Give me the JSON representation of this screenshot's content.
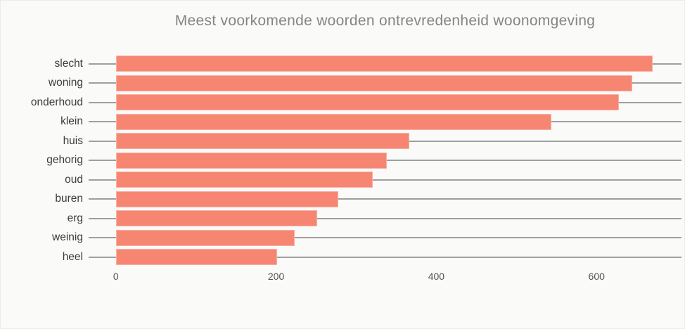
{
  "title": "Meest voorkomende woorden ontrevredenheid woonomgeving",
  "chart_data": {
    "type": "bar",
    "orientation": "horizontal",
    "title": "Meest voorkomende woorden ontrevredenheid woonomgeving",
    "categories": [
      "slecht",
      "woning",
      "onderhoud",
      "klein",
      "huis",
      "gehorig",
      "oud",
      "buren",
      "erg",
      "weinig",
      "heel"
    ],
    "values": [
      670,
      645,
      628,
      544,
      366,
      338,
      321,
      278,
      251,
      223,
      201
    ],
    "xlabel": "",
    "ylabel": "",
    "x_ticks": [
      0,
      200,
      400,
      600
    ],
    "xlim": [
      -34,
      706
    ],
    "grid": "horizontal line per category row, drawn behind bars",
    "legend": "none",
    "colors": {
      "bar": "#f68672",
      "gridline": "#9f9f9f",
      "background": "#fafaf9",
      "title_text": "#858585",
      "category_text": "#3c3c3c",
      "tick_text": "#525252"
    }
  }
}
